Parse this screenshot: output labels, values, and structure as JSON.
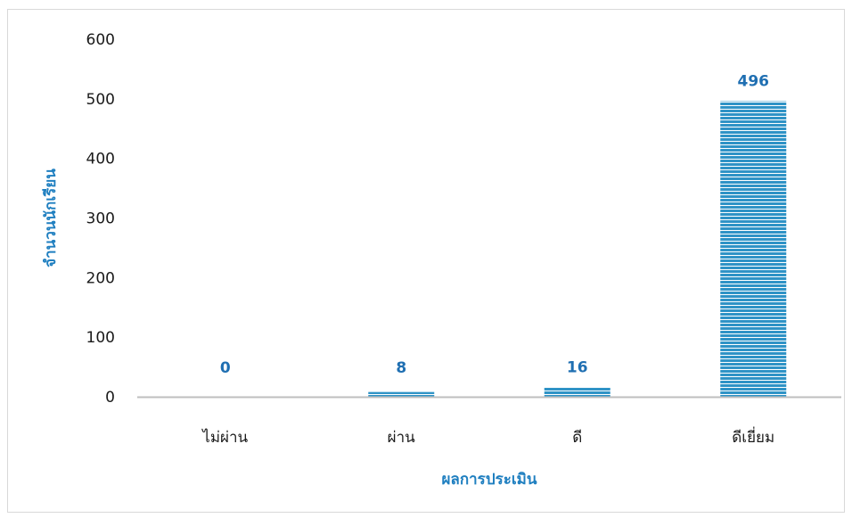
{
  "chart_data": {
    "type": "bar",
    "categories": [
      "ไม่ผ่าน",
      "ผ่าน",
      "ดี",
      "ดีเยี่ยม"
    ],
    "values": [
      0,
      8,
      16,
      496
    ],
    "data_labels": [
      "0",
      "8",
      "16",
      "496"
    ],
    "xlabel": "ผลการประเมิน",
    "ylabel": "จำนวนนักเรียน",
    "ylim": [
      0,
      600
    ],
    "yticks": [
      0,
      100,
      200,
      300,
      400,
      500,
      600
    ],
    "grid": false,
    "legend": "none",
    "colors": {
      "bar": "#2f93c6",
      "bar_stripe": "#ffffff",
      "data_label": "#1f6fb2",
      "axis_title": "#1f7fc0",
      "axis_line": "#bfbfbf"
    }
  }
}
